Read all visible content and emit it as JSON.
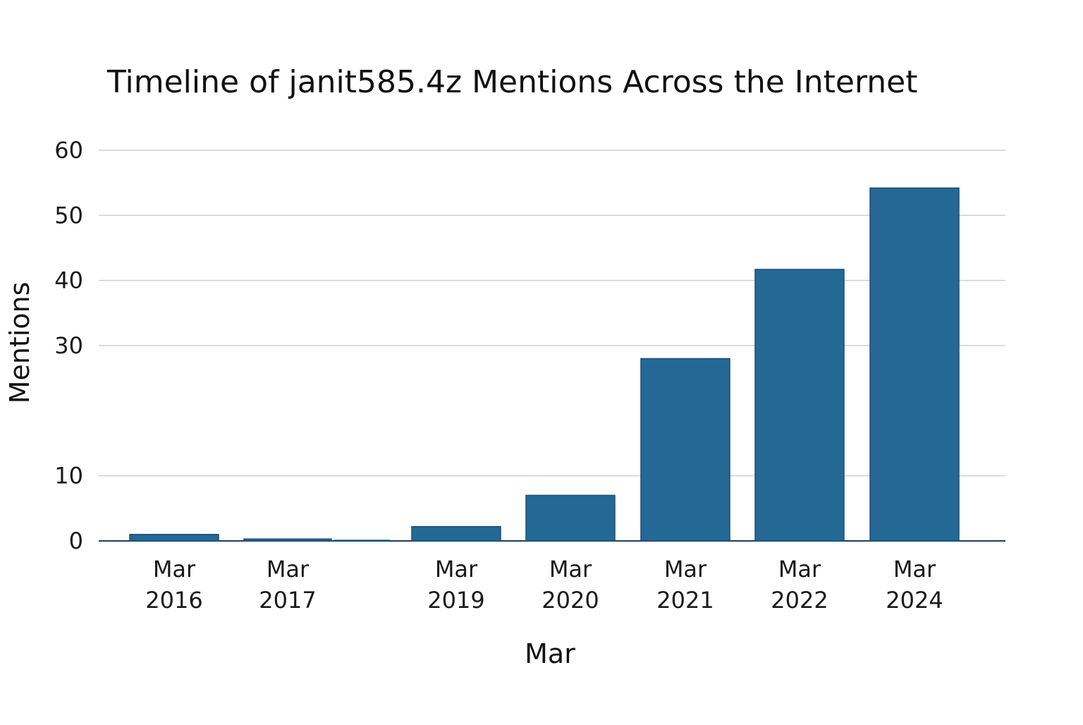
{
  "chart_data": {
    "type": "bar",
    "title": "Timeline of janit585.4z Mentions Across the Internet",
    "xlabel": "Mar",
    "ylabel": "Mentions",
    "categories": [
      [
        "Mar",
        "2016"
      ],
      [
        "Mar",
        "2017"
      ],
      [
        "",
        ""
      ],
      [
        "Mar",
        "2019"
      ],
      [
        "Mar",
        "2020"
      ],
      [
        "Mar",
        "2021"
      ],
      [
        "Mar",
        "2022"
      ],
      [
        "Mar",
        "2024"
      ]
    ],
    "values": [
      1,
      0.3,
      0.1,
      2.2,
      7,
      28,
      41.7,
      54.2
    ],
    "ylim": [
      0,
      60
    ],
    "yticks": [
      0,
      10,
      30,
      40,
      50,
      60
    ],
    "grid": true,
    "legend": "none",
    "colors": {
      "bar": "#246896",
      "bar_edge": "#1d4f73",
      "grid": "#cfcfcf",
      "baseline": "#1f3f5c"
    }
  }
}
